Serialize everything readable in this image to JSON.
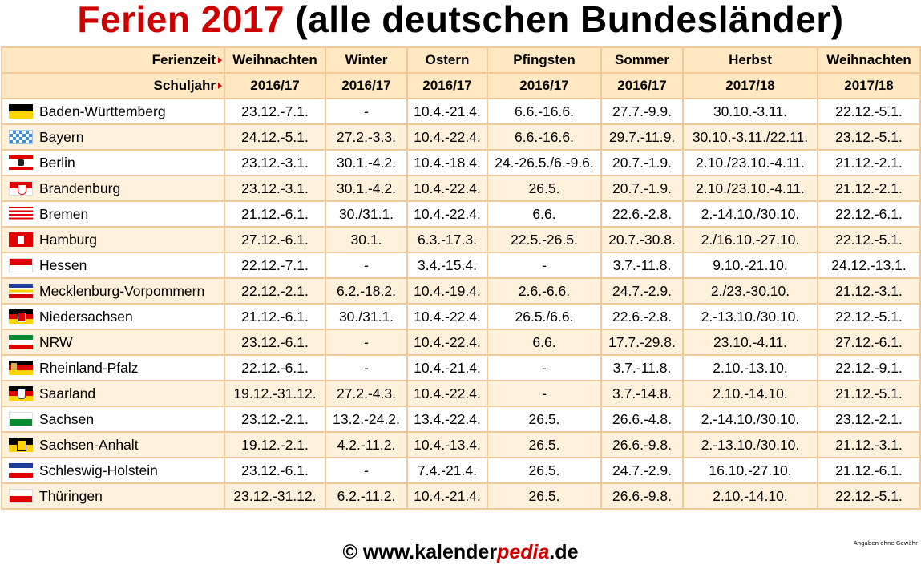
{
  "title": {
    "red": "Ferien 2017",
    "black": " (alle deutschen Bundesländer)"
  },
  "header": {
    "ferienzeit_label": "Ferienzeit",
    "schuljahr_label": "Schuljahr",
    "columns": [
      {
        "name": "Weihnachten",
        "year": "2016/17"
      },
      {
        "name": "Winter",
        "year": "2016/17"
      },
      {
        "name": "Ostern",
        "year": "2016/17"
      },
      {
        "name": "Pfingsten",
        "year": "2016/17"
      },
      {
        "name": "Sommer",
        "year": "2016/17"
      },
      {
        "name": "Herbst",
        "year": "2017/18"
      },
      {
        "name": "Weihnachten",
        "year": "2017/18"
      }
    ]
  },
  "rows": [
    {
      "land": "Baden-Württemberg",
      "flag": "baden-wuerttemberg-flag-icon",
      "values": [
        "23.12.-7.1.",
        "-",
        "10.4.-21.4.",
        "6.6.-16.6.",
        "27.7.-9.9.",
        "30.10.-3.11.",
        "22.12.-5.1."
      ]
    },
    {
      "land": "Bayern",
      "flag": "bayern-flag-icon",
      "values": [
        "24.12.-5.1.",
        "27.2.-3.3.",
        "10.4.-22.4.",
        "6.6.-16.6.",
        "29.7.-11.9.",
        "30.10.-3.11./22.11.",
        "23.12.-5.1."
      ]
    },
    {
      "land": "Berlin",
      "flag": "berlin-flag-icon",
      "values": [
        "23.12.-3.1.",
        "30.1.-4.2.",
        "10.4.-18.4.",
        "24.-26.5./6.-9.6.",
        "20.7.-1.9.",
        "2.10./23.10.-4.11.",
        "21.12.-2.1."
      ]
    },
    {
      "land": "Brandenburg",
      "flag": "brandenburg-flag-icon",
      "values": [
        "23.12.-3.1.",
        "30.1.-4.2.",
        "10.4.-22.4.",
        "26.5.",
        "20.7.-1.9.",
        "2.10./23.10.-4.11.",
        "21.12.-2.1."
      ]
    },
    {
      "land": "Bremen",
      "flag": "bremen-flag-icon",
      "values": [
        "21.12.-6.1.",
        "30./31.1.",
        "10.4.-22.4.",
        "6.6.",
        "22.6.-2.8.",
        "2.-14.10./30.10.",
        "22.12.-6.1."
      ]
    },
    {
      "land": "Hamburg",
      "flag": "hamburg-flag-icon",
      "values": [
        "27.12.-6.1.",
        "30.1.",
        "6.3.-17.3.",
        "22.5.-26.5.",
        "20.7.-30.8.",
        "2./16.10.-27.10.",
        "22.12.-5.1."
      ]
    },
    {
      "land": "Hessen",
      "flag": "hessen-flag-icon",
      "values": [
        "22.12.-7.1.",
        "-",
        "3.4.-15.4.",
        "-",
        "3.7.-11.8.",
        "9.10.-21.10.",
        "24.12.-13.1."
      ]
    },
    {
      "land": "Mecklenburg-Vorpommern",
      "flag": "mecklenburg-vorpommern-flag-icon",
      "values": [
        "22.12.-2.1.",
        "6.2.-18.2.",
        "10.4.-19.4.",
        "2.6.-6.6.",
        "24.7.-2.9.",
        "2./23.-30.10.",
        "21.12.-3.1."
      ]
    },
    {
      "land": "Niedersachsen",
      "flag": "niedersachsen-flag-icon",
      "values": [
        "21.12.-6.1.",
        "30./31.1.",
        "10.4.-22.4.",
        "26.5./6.6.",
        "22.6.-2.8.",
        "2.-13.10./30.10.",
        "22.12.-5.1."
      ]
    },
    {
      "land": "NRW",
      "flag": "nrw-flag-icon",
      "values": [
        "23.12.-6.1.",
        "-",
        "10.4.-22.4.",
        "6.6.",
        "17.7.-29.8.",
        "23.10.-4.11.",
        "27.12.-6.1."
      ]
    },
    {
      "land": "Rheinland-Pfalz",
      "flag": "rheinland-pfalz-flag-icon",
      "values": [
        "22.12.-6.1.",
        "-",
        "10.4.-21.4.",
        "-",
        "3.7.-11.8.",
        "2.10.-13.10.",
        "22.12.-9.1."
      ]
    },
    {
      "land": "Saarland",
      "flag": "saarland-flag-icon",
      "values": [
        "19.12.-31.12.",
        "27.2.-4.3.",
        "10.4.-22.4.",
        "-",
        "3.7.-14.8.",
        "2.10.-14.10.",
        "21.12.-5.1."
      ]
    },
    {
      "land": "Sachsen",
      "flag": "sachsen-flag-icon",
      "values": [
        "23.12.-2.1.",
        "13.2.-24.2.",
        "13.4.-22.4.",
        "26.5.",
        "26.6.-4.8.",
        "2.-14.10./30.10.",
        "23.12.-2.1."
      ]
    },
    {
      "land": "Sachsen-Anhalt",
      "flag": "sachsen-anhalt-flag-icon",
      "values": [
        "19.12.-2.1.",
        "4.2.-11.2.",
        "10.4.-13.4.",
        "26.5.",
        "26.6.-9.8.",
        "2.-13.10./30.10.",
        "21.12.-3.1."
      ]
    },
    {
      "land": "Schleswig-Holstein",
      "flag": "schleswig-holstein-flag-icon",
      "values": [
        "23.12.-6.1.",
        "-",
        "7.4.-21.4.",
        "26.5.",
        "24.7.-2.9.",
        "16.10.-27.10.",
        "21.12.-6.1."
      ]
    },
    {
      "land": "Thüringen",
      "flag": "thueringen-flag-icon",
      "values": [
        "23.12.-31.12.",
        "6.2.-11.2.",
        "10.4.-21.4.",
        "26.5.",
        "26.6.-9.8.",
        "2.10.-14.10.",
        "22.12.-5.1."
      ]
    }
  ],
  "footer": {
    "prefix": "© www.kalender",
    "accent": "pedia",
    "suffix": ".de",
    "disclaimer": "Angaben ohne Gewähr"
  }
}
